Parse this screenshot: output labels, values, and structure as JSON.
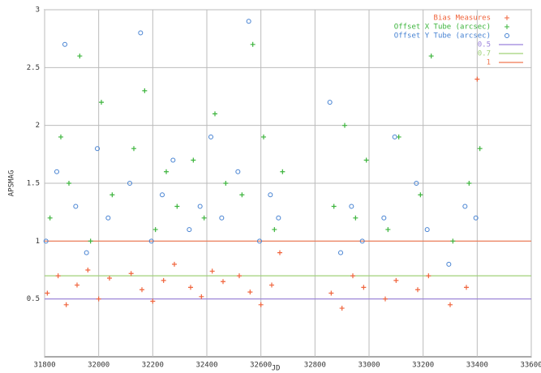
{
  "chart_data": {
    "type": "scatter",
    "x_label": "JD",
    "y_label": "APSMAG",
    "xlim": [
      31800,
      33600
    ],
    "xticks": [
      31800,
      32000,
      32200,
      32400,
      32600,
      32800,
      33000,
      33200,
      33400,
      33600
    ],
    "ylim": [
      0,
      3
    ],
    "yticks": [
      0.5,
      1,
      1.5,
      2,
      2.5,
      3
    ],
    "grid": true,
    "legend": "top-right",
    "series": [
      {
        "name": "Bias Measures",
        "color": "#f0643c",
        "marker": "plus",
        "x": [
          31810,
          31850,
          31880,
          31920,
          31960,
          32000,
          32040,
          32120,
          32160,
          32200,
          32240,
          32280,
          32340,
          32380,
          32420,
          32460,
          32520,
          32560,
          32600,
          32640,
          32670,
          32860,
          32900,
          32940,
          32980,
          33060,
          33100,
          33180,
          33220,
          33300,
          33360,
          33400
        ],
        "values": [
          0.55,
          0.7,
          0.45,
          0.62,
          0.75,
          0.5,
          0.68,
          0.72,
          0.58,
          0.48,
          0.66,
          0.8,
          0.6,
          0.52,
          0.74,
          0.65,
          0.7,
          0.56,
          0.45,
          0.62,
          0.9,
          0.55,
          0.42,
          0.7,
          0.6,
          0.5,
          0.66,
          0.58,
          0.7,
          0.45,
          0.6,
          2.4
        ]
      },
      {
        "name": "Offset X Tube (arcsec)",
        "color": "#3cb43c",
        "marker": "plus",
        "x": [
          31820,
          31860,
          31890,
          31930,
          31970,
          32010,
          32050,
          32130,
          32170,
          32210,
          32250,
          32290,
          32350,
          32390,
          32430,
          32470,
          32530,
          32570,
          32610,
          32650,
          32680,
          32870,
          32910,
          32950,
          32990,
          33070,
          33110,
          33190,
          33230,
          33310,
          33370,
          33410
        ],
        "values": [
          1.2,
          1.9,
          1.5,
          2.6,
          1.0,
          2.2,
          1.4,
          1.8,
          2.3,
          1.1,
          1.6,
          1.3,
          1.7,
          1.2,
          2.1,
          1.5,
          1.4,
          2.7,
          1.9,
          1.1,
          1.6,
          1.3,
          2.0,
          1.2,
          1.7,
          1.1,
          1.9,
          1.4,
          2.6,
          1.0,
          1.5,
          1.8
        ]
      },
      {
        "name": "Offset Y Tube (arcsec)",
        "color": "#4682d2",
        "marker": "circle",
        "x": [
          31805,
          31845,
          31875,
          31915,
          31955,
          31995,
          32035,
          32115,
          32155,
          32195,
          32235,
          32275,
          32335,
          32375,
          32415,
          32455,
          32515,
          32555,
          32595,
          32635,
          32665,
          32855,
          32895,
          32935,
          32975,
          33055,
          33095,
          33175,
          33215,
          33295,
          33355,
          33395
        ],
        "values": [
          1.0,
          1.6,
          2.7,
          1.3,
          0.9,
          1.8,
          1.2,
          1.5,
          2.8,
          1.0,
          1.4,
          1.7,
          1.1,
          1.3,
          1.9,
          1.2,
          1.6,
          2.9,
          1.0,
          1.4,
          1.2,
          2.2,
          0.9,
          1.3,
          1.0,
          1.2,
          1.9,
          1.5,
          1.1,
          0.8,
          1.3,
          1.2
        ]
      }
    ],
    "hlines": [
      {
        "name": "0.5",
        "color": "#9b82dc",
        "value": 0.5
      },
      {
        "name": "0.7",
        "color": "#a0d278",
        "value": 0.7
      },
      {
        "name": "1",
        "color": "#f07850",
        "value": 1
      }
    ]
  }
}
